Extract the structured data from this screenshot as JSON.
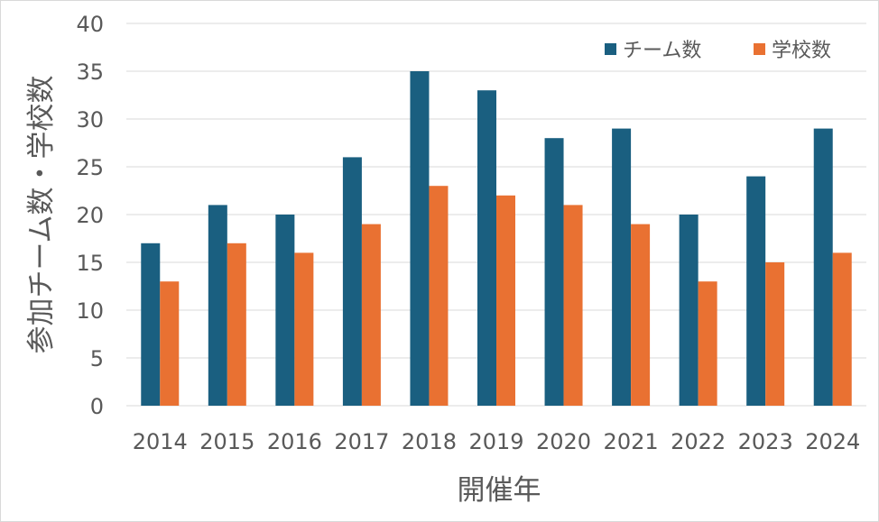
{
  "chart_data": {
    "type": "bar",
    "title": "",
    "xlabel": "開催年",
    "ylabel": "参加チーム数・学校数",
    "categories": [
      "2014",
      "2015",
      "2016",
      "2017",
      "2018",
      "2019",
      "2020",
      "2021",
      "2022",
      "2023",
      "2024"
    ],
    "series": [
      {
        "name": "チーム数",
        "color": "#1a5f80",
        "values": [
          17,
          21,
          20,
          26,
          35,
          33,
          28,
          29,
          20,
          24,
          29
        ]
      },
      {
        "name": "学校数",
        "color": "#e97132",
        "values": [
          13,
          17,
          16,
          19,
          23,
          22,
          21,
          19,
          13,
          15,
          16
        ]
      }
    ],
    "ylim": [
      0,
      40
    ],
    "yticks": [
      0,
      5,
      10,
      15,
      20,
      25,
      30,
      35,
      40
    ],
    "grid": true,
    "legend_position": "top-right",
    "gridline_color": "#d9d9d9"
  }
}
